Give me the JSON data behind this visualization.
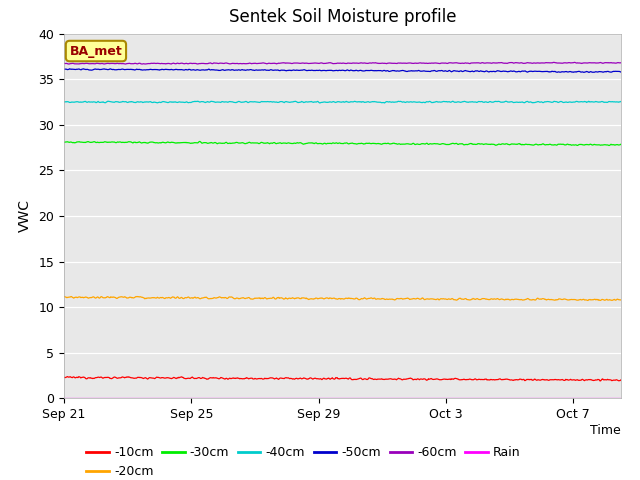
{
  "title": "Sentek Soil Moisture profile",
  "ylabel": "VWC",
  "ylim": [
    0,
    40
  ],
  "yticks": [
    0,
    5,
    10,
    15,
    20,
    25,
    30,
    35,
    40
  ],
  "background_color": "#e8e8e8",
  "series_order": [
    "-10cm",
    "-20cm",
    "-30cm",
    "-40cm",
    "-50cm",
    "-60cm",
    "Rain"
  ],
  "series": {
    "-10cm": {
      "color": "#ff0000",
      "mean": 2.3,
      "noise_scale": 0.08
    },
    "-20cm": {
      "color": "#ffa500",
      "mean": 11.1,
      "noise_scale": 0.08
    },
    "-30cm": {
      "color": "#00ee00",
      "mean": 28.1,
      "noise_scale": 0.06
    },
    "-40cm": {
      "color": "#00cccc",
      "mean": 32.5,
      "noise_scale": 0.06
    },
    "-50cm": {
      "color": "#0000cc",
      "mean": 36.1,
      "noise_scale": 0.05
    },
    "-60cm": {
      "color": "#9900bb",
      "mean": 36.7,
      "noise_scale": 0.04
    },
    "Rain": {
      "color": "#ff00ff",
      "mean": 0.05,
      "noise_scale": 0.0
    }
  },
  "x_tick_labels": [
    "Sep 21",
    "Sep 25",
    "Sep 29",
    "Oct 3",
    "Oct 7"
  ],
  "x_tick_positions": [
    0,
    4,
    8,
    12,
    16
  ],
  "x_range": [
    0,
    17.5
  ],
  "n_points": 800,
  "annotation_text": "BA_met",
  "annotation_color": "#990000",
  "annotation_bg": "#ffff99",
  "annotation_border": "#aa8800",
  "legend_labels": [
    "-10cm",
    "-20cm",
    "-30cm",
    "-40cm",
    "-50cm",
    "-60cm"
  ],
  "legend_colors": [
    "#ff0000",
    "#ffa500",
    "#00ee00",
    "#00cccc",
    "#0000cc",
    "#9900bb"
  ],
  "rain_color": "#ff00ff"
}
